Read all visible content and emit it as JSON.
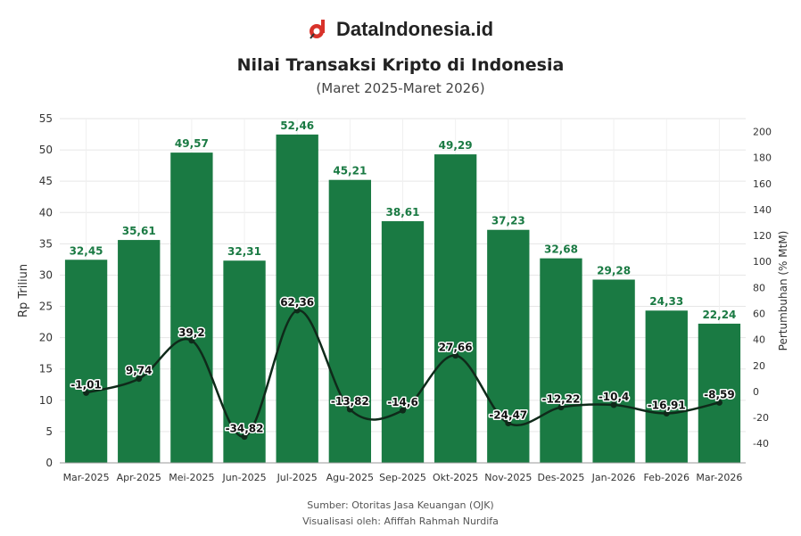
{
  "brand": {
    "name": "DataIndonesia.id",
    "logo_icon": "dataindonesia-logo-icon"
  },
  "chart_data": {
    "type": "bar",
    "title": "Nilai Transaksi Kripto di Indonesia",
    "subtitle": "(Maret 2025-Maret 2026)",
    "categories": [
      "Mar-2025",
      "Apr-2025",
      "Mei-2025",
      "Jun-2025",
      "Jul-2025",
      "Agu-2025",
      "Sep-2025",
      "Okt-2025",
      "Nov-2025",
      "Des-2025",
      "Jan-2026",
      "Feb-2026",
      "Mar-2026"
    ],
    "series": [
      {
        "type": "bar",
        "axis": "left",
        "color": "#1a7a43",
        "values": [
          32.45,
          35.61,
          49.57,
          32.31,
          52.46,
          45.21,
          38.61,
          49.29,
          37.23,
          32.68,
          29.28,
          24.33,
          22.24
        ],
        "labels": [
          "32,45",
          "35,61",
          "49,57",
          "32,31",
          "52,46",
          "45,21",
          "38,61",
          "49,29",
          "37,23",
          "32,68",
          "29,28",
          "24,33",
          "22,24"
        ]
      },
      {
        "type": "line",
        "axis": "right",
        "color": "#0f2a1a",
        "values": [
          -1.01,
          9.74,
          39.2,
          -34.82,
          62.36,
          -13.82,
          -14.6,
          27.66,
          -24.47,
          -12.22,
          -10.4,
          -16.91,
          -8.59
        ],
        "labels": [
          "-1,01",
          "9,74",
          "39,2",
          "-34,82",
          "62,36",
          "-13,82",
          "-14,6",
          "27,66",
          "-24,47",
          "-12,22",
          "-10,4",
          "-16,91",
          "-8,59"
        ]
      }
    ],
    "ylabel": "Rp Triliun",
    "y2label": "Pertumbuhan (% MtM)",
    "ylim": [
      0,
      55
    ],
    "yticks": [
      0,
      5,
      10,
      15,
      20,
      25,
      30,
      35,
      40,
      45,
      50,
      55
    ],
    "y2lim": [
      -55,
      210
    ],
    "y2ticks": [
      -40,
      -20,
      0,
      20,
      40,
      60,
      80,
      100,
      120,
      140,
      160,
      180,
      200
    ],
    "grid": true
  },
  "footer": {
    "source": "Sumber: Otoritas Jasa Keuangan (OJK)",
    "visualized_by": "Visualisasi oleh: Afiffah Rahmah Nurdifa"
  }
}
